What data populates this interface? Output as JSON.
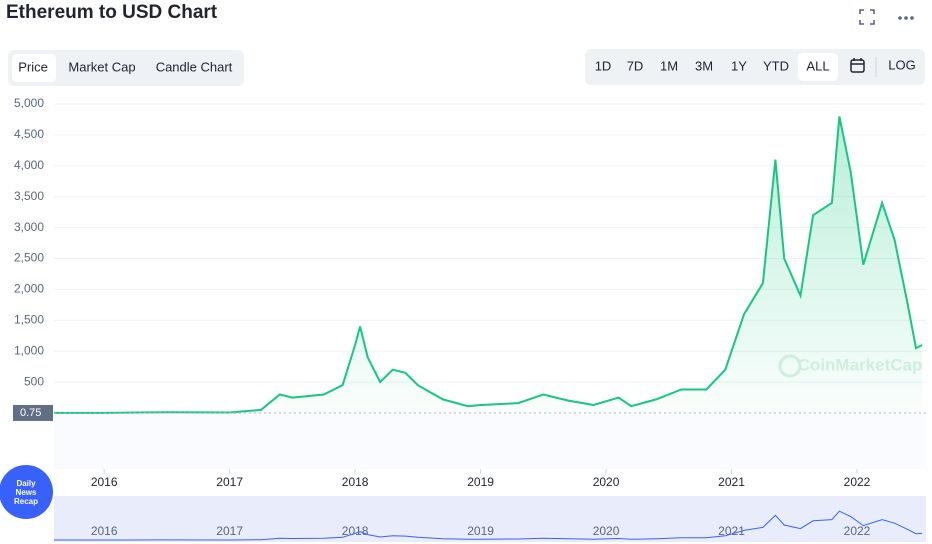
{
  "header": {
    "title": "Ethereum to USD Chart"
  },
  "tabs": [
    "Price",
    "Market Cap",
    "Candle Chart"
  ],
  "ranges": [
    "1D",
    "7D",
    "1M",
    "3M",
    "1Y",
    "YTD",
    "ALL"
  ],
  "log_button": "LOG",
  "watermark": "CoinMarketCap",
  "badge": [
    "Daily",
    "News",
    "Recap"
  ],
  "chart_data": {
    "type": "area",
    "x": [
      2015.6,
      2016.0,
      2016.5,
      2017.0,
      2017.25,
      2017.4,
      2017.5,
      2017.75,
      2017.9,
      2018.0,
      2018.04,
      2018.1,
      2018.2,
      2018.3,
      2018.4,
      2018.5,
      2018.7,
      2018.9,
      2019.0,
      2019.3,
      2019.5,
      2019.7,
      2019.9,
      2020.1,
      2020.2,
      2020.4,
      2020.6,
      2020.8,
      2020.95,
      2021.1,
      2021.25,
      2021.35,
      2021.42,
      2021.55,
      2021.65,
      2021.8,
      2021.86,
      2021.95,
      2022.05,
      2022.2,
      2022.3,
      2022.4,
      2022.47,
      2022.52
    ],
    "series": [
      {
        "color": "#16c784",
        "values": [
          1,
          1,
          12,
          8,
          50,
          300,
          250,
          300,
          450,
          1100,
          1400,
          900,
          500,
          700,
          650,
          450,
          220,
          110,
          130,
          160,
          300,
          200,
          130,
          250,
          110,
          220,
          380,
          380,
          700,
          1600,
          2100,
          4100,
          2500,
          1900,
          3200,
          3400,
          4800,
          3900,
          2400,
          3400,
          2800,
          1800,
          1050,
          1100
        ]
      }
    ],
    "xlim": [
      2015.6,
      2022.55
    ],
    "xticks": [
      2016,
      2017,
      2018,
      2019,
      2020,
      2021,
      2022
    ],
    "ylim": [
      0,
      5000
    ],
    "yticks": [
      500,
      {
        "value": 1000,
        "label": "1,000"
      },
      {
        "value": 1500,
        "label": "1,500"
      },
      {
        "value": 2000,
        "label": "2,000"
      },
      {
        "value": 2500,
        "label": "2,500"
      },
      {
        "value": 3000,
        "label": "3,000"
      },
      {
        "value": 3500,
        "label": "3,500"
      },
      {
        "value": 4000,
        "label": "4,000"
      },
      {
        "value": 4500,
        "label": "4,500"
      },
      {
        "value": 5000,
        "label": "5,000"
      }
    ],
    "grid": true,
    "annotations": [
      {
        "value": 0.75
      }
    ]
  }
}
